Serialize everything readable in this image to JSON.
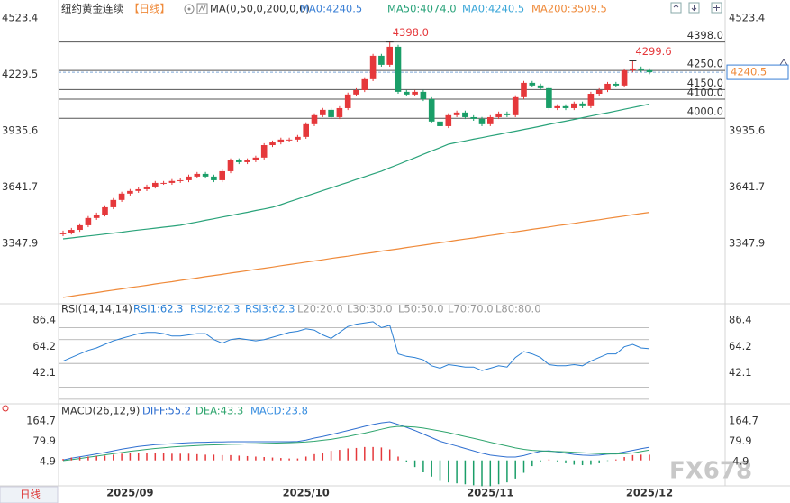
{
  "header": {
    "symbol": "纽约黄金连续",
    "period": "【日线】",
    "indicator": "MA(0,50,0,200,0,0)"
  },
  "footer": {
    "period_tab": "日线"
  },
  "watermark": "FX678",
  "chart_data": [
    {
      "type": "candlestick",
      "categories": [
        null,
        null,
        null,
        null,
        null,
        null,
        null,
        null,
        "2025/09",
        null,
        null,
        null,
        null,
        null,
        null,
        null,
        null,
        null,
        null,
        null,
        null,
        null,
        null,
        null,
        null,
        null,
        null,
        null,
        null,
        "2025/10",
        null,
        null,
        null,
        null,
        null,
        null,
        null,
        null,
        null,
        null,
        null,
        null,
        null,
        null,
        null,
        null,
        null,
        null,
        null,
        null,
        null,
        "2025/11",
        null,
        null,
        null,
        null,
        null,
        null,
        null,
        null,
        null,
        null,
        null,
        null,
        null,
        null,
        null,
        null,
        null,
        null,
        "2025/12"
      ],
      "open": [
        3395,
        3404,
        3418,
        3442,
        3480,
        3498,
        3536,
        3574,
        3607,
        3621,
        3630,
        3644,
        3663,
        3663,
        3673,
        3677,
        3696,
        3710,
        3696,
        3677,
        3724,
        3781,
        3771,
        3781,
        3795,
        3860,
        3874,
        3889,
        3889,
        3903,
        3969,
        4016,
        4044,
        4006,
        4053,
        4124,
        4147,
        4204,
        4326,
        4279,
        4373,
        4138,
        4124,
        4138,
        4100,
        3983,
        3959,
        4016,
        4030,
        4006,
        3997,
        3969,
        4006,
        4025,
        4016,
        4110,
        4185,
        4171,
        4157,
        4053,
        4063,
        4053,
        4077,
        4063,
        4128,
        4147,
        4180,
        4171,
        4250,
        4260,
        4251
      ],
      "high": [
        3414,
        3428,
        3452,
        3490,
        3508,
        3546,
        3584,
        3617,
        3631,
        3640,
        3654,
        3673,
        3673,
        3683,
        3687,
        3706,
        3720,
        3720,
        3706,
        3734,
        3791,
        3791,
        3791,
        3805,
        3870,
        3884,
        3899,
        3899,
        3913,
        3979,
        4026,
        4054,
        4054,
        4063,
        4134,
        4157,
        4214,
        4336,
        4336,
        4398,
        4383,
        4148,
        4148,
        4148,
        4110,
        3993,
        4026,
        4040,
        4040,
        4016,
        4007,
        4016,
        4035,
        4035,
        4120,
        4195,
        4195,
        4181,
        4167,
        4073,
        4073,
        4087,
        4087,
        4138,
        4157,
        4190,
        4190,
        4260,
        4299.6,
        4270,
        4261
      ],
      "low": [
        3385,
        3394,
        3408,
        3432,
        3470,
        3488,
        3526,
        3564,
        3597,
        3611,
        3620,
        3634,
        3653,
        3653,
        3663,
        3667,
        3686,
        3686,
        3667,
        3667,
        3714,
        3761,
        3761,
        3771,
        3785,
        3850,
        3864,
        3879,
        3879,
        3893,
        3959,
        4006,
        3996,
        3996,
        4043,
        4114,
        4137,
        4194,
        4269,
        4269,
        4128,
        4114,
        4114,
        4090,
        3973,
        3930,
        3949,
        4006,
        3996,
        3987,
        3959,
        3959,
        3996,
        4006,
        4006,
        4100,
        4161,
        4147,
        4043,
        4043,
        4043,
        4043,
        4053,
        4053,
        4118,
        4137,
        4161,
        4161,
        4240,
        4241,
        4230
      ],
      "close": [
        3404,
        3418,
        3442,
        3480,
        3498,
        3536,
        3574,
        3607,
        3621,
        3630,
        3644,
        3663,
        3663,
        3673,
        3677,
        3696,
        3710,
        3696,
        3677,
        3724,
        3781,
        3771,
        3781,
        3795,
        3860,
        3874,
        3889,
        3889,
        3903,
        3969,
        4016,
        4044,
        4006,
        4053,
        4124,
        4147,
        4204,
        4326,
        4279,
        4373,
        4138,
        4124,
        4138,
        4100,
        3983,
        3959,
        4016,
        4030,
        4006,
        3997,
        3969,
        4006,
        4025,
        4016,
        4110,
        4185,
        4171,
        4157,
        4053,
        4063,
        4053,
        4077,
        4063,
        4128,
        4147,
        4180,
        4171,
        4250,
        4260,
        4251,
        4240.5
      ],
      "up_color": "#e5383b",
      "down_color": "#1a9e68",
      "ylim": [
        3042,
        4570
      ],
      "yticks": [
        4523.4,
        4229.5,
        3935.6,
        3641.7,
        3347.9
      ],
      "series": [
        {
          "name": "MA0:4240.5",
          "color": "#3a7fd5"
        },
        {
          "name": "MA50:4074.0",
          "color": "#2aa37a",
          "values": [
            3371,
            3376,
            3381,
            3386,
            3391,
            3396,
            3401,
            3406,
            3412,
            3417,
            3422,
            3427,
            3432,
            3437,
            3442,
            3451,
            3459,
            3468,
            3476,
            3485,
            3493,
            3502,
            3510,
            3519,
            3527,
            3536,
            3550,
            3565,
            3579,
            3594,
            3608,
            3623,
            3637,
            3652,
            3666,
            3681,
            3695,
            3710,
            3724,
            3742,
            3759,
            3777,
            3794,
            3812,
            3830,
            3847,
            3865,
            3874,
            3882,
            3891,
            3899,
            3908,
            3916,
            3925,
            3933,
            3942,
            3950,
            3959,
            3968,
            3977,
            3985,
            3994,
            4003,
            4012,
            4021,
            4029,
            4038,
            4047,
            4056,
            4065,
            4074
          ]
        },
        {
          "name": "MA0:4240.5",
          "color": "#3aa6d8"
        },
        {
          "name": "MA200:3509.5",
          "color": "#ef8a3a",
          "values": [
            3066,
            3072,
            3079,
            3085,
            3091,
            3098,
            3104,
            3110,
            3117,
            3123,
            3129,
            3136,
            3142,
            3148,
            3155,
            3161,
            3167,
            3174,
            3180,
            3186,
            3193,
            3199,
            3205,
            3212,
            3218,
            3224,
            3231,
            3237,
            3243,
            3250,
            3256,
            3262,
            3269,
            3275,
            3281,
            3288,
            3294,
            3300,
            3307,
            3313,
            3319,
            3326,
            3332,
            3338,
            3345,
            3351,
            3357,
            3364,
            3370,
            3376,
            3383,
            3389,
            3395,
            3402,
            3408,
            3414,
            3421,
            3427,
            3433,
            3440,
            3446,
            3452,
            3459,
            3465,
            3471,
            3478,
            3484,
            3490,
            3497,
            3503,
            3509.5
          ]
        }
      ],
      "price_lines": [
        {
          "value": 4398,
          "label": "4398.0"
        },
        {
          "value": 4250,
          "label": "4250.0"
        },
        {
          "value": 4150,
          "label": "4150.0"
        },
        {
          "value": 4100,
          "label": "4100.0"
        },
        {
          "value": 4000,
          "label": "4000.0"
        }
      ],
      "current_price": {
        "value": 4240.5,
        "label": "4240.5"
      },
      "annotations": [
        {
          "value": 4398,
          "label": "4398.0"
        },
        {
          "value": 4299.6,
          "label": "4299.6"
        }
      ]
    },
    {
      "type": "line",
      "title": "RSI(14,14,14)",
      "ylim": [
        18.4,
        94
      ],
      "yticks": [
        86.4,
        64.2,
        42.1
      ],
      "series": [
        {
          "name": "RSI1:62.3",
          "color": "#2a7fd4",
          "values": [
            52,
            55,
            58,
            61,
            63,
            66,
            69,
            71,
            73,
            75,
            76,
            76,
            75,
            73,
            73,
            74,
            75,
            75,
            70,
            67,
            70,
            71,
            70,
            69,
            70,
            72,
            74,
            76,
            77,
            79,
            78,
            74,
            71,
            76,
            81,
            83,
            84,
            85,
            80,
            82,
            58,
            56,
            55,
            53,
            48,
            46,
            49,
            48,
            47,
            47,
            44,
            46,
            48,
            47,
            55,
            60,
            58,
            55,
            49,
            48,
            48,
            49,
            48,
            52,
            55,
            58,
            58,
            64,
            66,
            63,
            62.3
          ]
        },
        {
          "name": "RSI2:62.3",
          "color": "#3a8fe0"
        },
        {
          "name": "RSI3:62.3",
          "color": "#3a8fe0"
        }
      ],
      "levels": [
        {
          "value": 20,
          "label": "L20:20.0"
        },
        {
          "value": 30,
          "label": "L30:30.0"
        },
        {
          "value": 50,
          "label": "L50:50.0"
        },
        {
          "value": 70,
          "label": "L70:70.0"
        },
        {
          "value": 80,
          "label": "L80:80.0"
        }
      ],
      "level_color": "#a8a8a8"
    },
    {
      "type": "macd",
      "title": "MACD(26,12,9)",
      "ylim": [
        -99,
        210
      ],
      "yticks": [
        164.7,
        79.9,
        -4.9
      ],
      "up_color": "#e5383b",
      "down_color": "#1a9e68",
      "series": [
        {
          "name": "DIFF:55.2",
          "color": "#2f6fd0",
          "values": [
            2,
            9,
            15,
            21,
            27,
            33,
            40,
            47,
            53,
            58,
            62,
            66,
            68,
            70,
            72,
            74,
            75,
            76,
            77,
            77,
            78,
            78,
            78,
            78,
            78,
            78,
            78,
            78,
            79,
            85,
            93,
            100,
            108,
            116,
            125,
            133,
            142,
            150,
            157,
            161,
            150,
            138,
            125,
            110,
            95,
            80,
            70,
            60,
            50,
            40,
            30,
            22,
            18,
            14,
            14,
            20,
            30,
            38,
            40,
            35,
            30,
            25,
            22,
            21,
            22,
            26,
            29,
            35,
            42,
            49,
            55.2
          ]
        },
        {
          "name": "DEA:43.3",
          "color": "#2fa56e",
          "values": [
            -1,
            3,
            8,
            13,
            18,
            23,
            28,
            33,
            38,
            42,
            46,
            50,
            53,
            56,
            58,
            60,
            62,
            64,
            65,
            66,
            67,
            68,
            69,
            70,
            71,
            72,
            73,
            74,
            75,
            77,
            80,
            84,
            88,
            94,
            100,
            107,
            114,
            122,
            130,
            138,
            142,
            141,
            139,
            135,
            129,
            123,
            116,
            108,
            100,
            92,
            84,
            76,
            68,
            60,
            52,
            46,
            42,
            40,
            38,
            37,
            36,
            34,
            32,
            30,
            28,
            27,
            27,
            28,
            31,
            37,
            43.3
          ]
        },
        {
          "name": "MACD:23.8",
          "color": "#3a8fe0",
          "type": "bar",
          "values": [
            6,
            12,
            14,
            16,
            18,
            20,
            24,
            28,
            30,
            32,
            32,
            32,
            30,
            28,
            28,
            28,
            26,
            24,
            24,
            22,
            22,
            20,
            18,
            16,
            14,
            12,
            10,
            8,
            8,
            16,
            26,
            32,
            40,
            44,
            50,
            52,
            56,
            56,
            54,
            46,
            16,
            -6,
            -28,
            -50,
            -68,
            -86,
            -92,
            -96,
            -100,
            -104,
            -108,
            -108,
            -100,
            -92,
            -76,
            -52,
            -24,
            -4,
            4,
            -4,
            -12,
            -18,
            -20,
            -18,
            -12,
            -2,
            4,
            14,
            22,
            24,
            23.8
          ]
        }
      ]
    }
  ]
}
